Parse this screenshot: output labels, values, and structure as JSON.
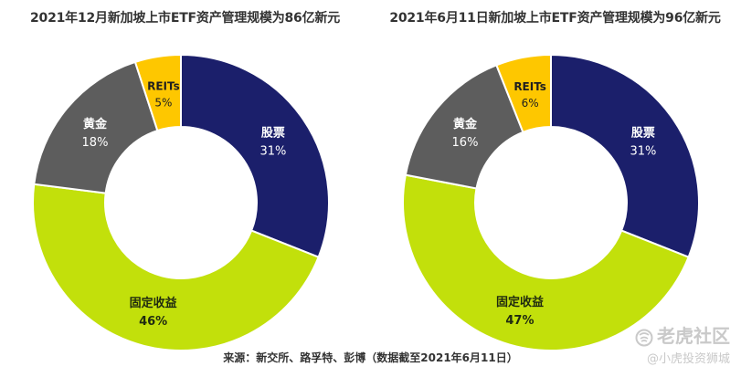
{
  "chart_data": [
    {
      "type": "pie",
      "donut": true,
      "title": "2021年12月新加坡上市ETF资产管理规模为86亿新元",
      "slices": [
        {
          "label": "股票",
          "value": 31,
          "display": "31%",
          "color": "#1b1f6b",
          "text_color": "#ffffff"
        },
        {
          "label": "固定收益",
          "value": 46,
          "display": "46%",
          "color": "#c2e00b",
          "text_color": "#1f2a10"
        },
        {
          "label": "黄金",
          "value": 18,
          "display": "18%",
          "color": "#5d5d5d",
          "text_color": "#ffffff"
        },
        {
          "label": "REITs",
          "value": 5,
          "display": "5%",
          "color": "#fec700",
          "text_color": "#1f1f1f"
        }
      ]
    },
    {
      "type": "pie",
      "donut": true,
      "title": "2021年6月11日新加坡上市ETF资产管理规模为96亿新元",
      "slices": [
        {
          "label": "股票",
          "value": 31,
          "display": "31%",
          "color": "#1b1f6b",
          "text_color": "#ffffff"
        },
        {
          "label": "固定收益",
          "value": 47,
          "display": "47%",
          "color": "#c2e00b",
          "text_color": "#1f2a10"
        },
        {
          "label": "黄金",
          "value": 16,
          "display": "16%",
          "color": "#5d5d5d",
          "text_color": "#ffffff"
        },
        {
          "label": "REITs",
          "value": 6,
          "display": "6%",
          "color": "#fec700",
          "text_color": "#1f1f1f"
        }
      ]
    }
  ],
  "source_note": "来源：新交所、路孚特、彭博（数据截至2021年6月11日）",
  "watermark": {
    "line1": "老虎社区",
    "line2": "@小虎投资狮城",
    "icon": "tiger-community-logo"
  }
}
